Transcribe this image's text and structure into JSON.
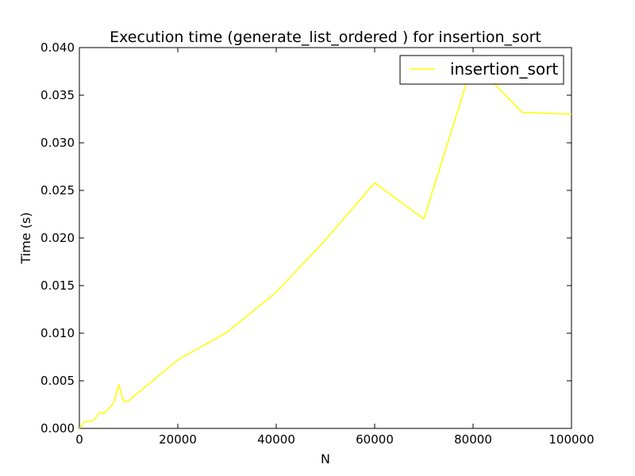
{
  "chart_data": {
    "type": "line",
    "title": "Execution time (generate_list_ordered ) for insertion_sort",
    "xlabel": "N",
    "ylabel": "Time (s)",
    "xlim": [
      0,
      100000
    ],
    "ylim": [
      0,
      0.04
    ],
    "x_ticks": [
      "0",
      "20000",
      "40000",
      "60000",
      "80000",
      "100000"
    ],
    "y_ticks": [
      "0.000",
      "0.005",
      "0.010",
      "0.015",
      "0.020",
      "0.025",
      "0.030",
      "0.035",
      "0.040"
    ],
    "grid": false,
    "legend_position": "top-right",
    "series": [
      {
        "name": "insertion_sort",
        "color": "#ffff00",
        "points": [
          [
            0,
            0.0
          ],
          [
            1000,
            0.0007
          ],
          [
            2000,
            0.0007
          ],
          [
            3000,
            0.0009
          ],
          [
            4000,
            0.0016
          ],
          [
            5000,
            0.0016
          ],
          [
            6000,
            0.0021
          ],
          [
            7000,
            0.0027
          ],
          [
            8000,
            0.0046
          ],
          [
            9000,
            0.0028
          ],
          [
            10000,
            0.0029
          ],
          [
            20000,
            0.0072
          ],
          [
            30000,
            0.0101
          ],
          [
            40000,
            0.0143
          ],
          [
            50000,
            0.0198
          ],
          [
            60000,
            0.0258
          ],
          [
            70000,
            0.022
          ],
          [
            80000,
            0.0385
          ],
          [
            90000,
            0.0332
          ],
          [
            100000,
            0.033
          ]
        ]
      }
    ]
  }
}
